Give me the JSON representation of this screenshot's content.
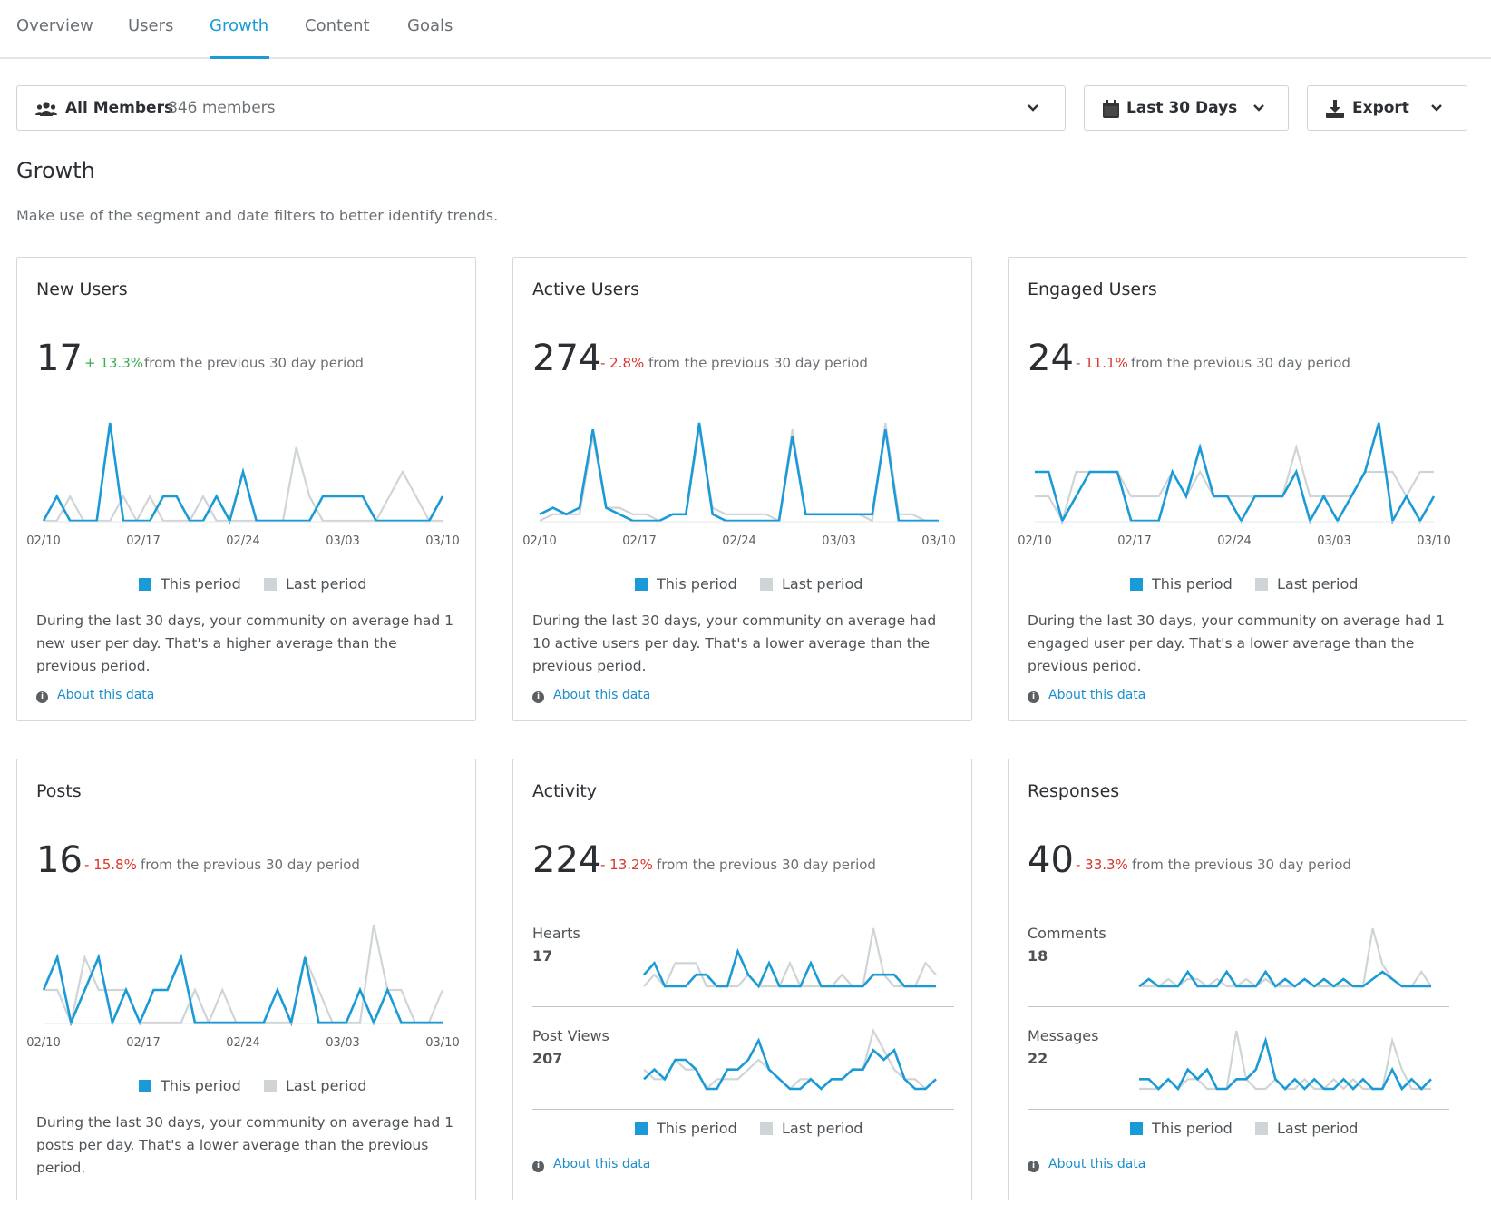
{
  "tabs": [
    "Overview",
    "Users",
    "Growth",
    "Content",
    "Goals"
  ],
  "active_tab": "Growth",
  "filters": {
    "segment": {
      "label": "All Members",
      "count": "846 members",
      "icon": "users-icon"
    },
    "date": {
      "label": "Last 30 Days",
      "icon": "calendar-icon"
    },
    "export": {
      "label": "Export",
      "icon": "download-icon"
    }
  },
  "page": {
    "title": "Growth",
    "subtitle": "Make use of the segment and date filters to better identify trends."
  },
  "colors": {
    "this_period": "#1a9ad6",
    "last_period": "#cfd4d6",
    "up": "#3aad4f",
    "down": "#d9342b",
    "link": "#1a8ecb"
  },
  "legend": {
    "this_period": "This period",
    "last_period": "Last period"
  },
  "about_label": "About this data",
  "from_text": "from the previous 30 day period",
  "cards": {
    "new_users": {
      "title": "New Users",
      "value": "17",
      "delta": "+ 13.3%",
      "direction": "up",
      "description": "During the last 30 days, your community on average had 1 new user per day. That's a higher average than the previous period."
    },
    "active_users": {
      "title": "Active Users",
      "value": "274",
      "delta": "- 2.8%",
      "direction": "down",
      "description": "During the last 30 days, your community on average had 10 active users per day. That's a lower average than the previous period."
    },
    "engaged_users": {
      "title": "Engaged Users",
      "value": "24",
      "delta": "- 11.1%",
      "direction": "down",
      "description": "During the last 30 days, your community on average had 1 engaged user per day. That's a lower average than the previous period."
    },
    "posts": {
      "title": "Posts",
      "value": "16",
      "delta": "- 15.8%",
      "direction": "down",
      "description": "During the last 30 days, your community on average had 1 posts per day. That's a lower average than the previous period."
    },
    "activity": {
      "title": "Activity",
      "value": "224",
      "delta": "- 13.2%",
      "direction": "down",
      "sub": [
        {
          "label": "Hearts",
          "value": "17"
        },
        {
          "label": "Post Views",
          "value": "207"
        }
      ]
    },
    "responses": {
      "title": "Responses",
      "value": "40",
      "delta": "- 33.3%",
      "direction": "down",
      "sub": [
        {
          "label": "Comments",
          "value": "18"
        },
        {
          "label": "Messages",
          "value": "22"
        }
      ]
    }
  },
  "chart_data": [
    {
      "id": "new_users",
      "type": "line",
      "x_ticks": [
        "02/10",
        "02/17",
        "02/24",
        "03/03",
        "03/10"
      ],
      "series": [
        {
          "name": "This period",
          "values": [
            0,
            1,
            0,
            0,
            0,
            4,
            0,
            0,
            0,
            1,
            1,
            0,
            0,
            1,
            0,
            2,
            0,
            0,
            0,
            0,
            0,
            1,
            1,
            1,
            1,
            0,
            0,
            0,
            0,
            0,
            1
          ]
        },
        {
          "name": "Last period",
          "values": [
            0,
            0,
            1,
            0,
            0,
            0,
            1,
            0,
            1,
            0,
            0,
            0,
            1,
            0,
            0,
            0,
            0,
            0,
            0,
            3,
            1,
            0,
            0,
            0,
            0,
            0,
            1,
            2,
            1,
            0,
            0
          ]
        }
      ]
    },
    {
      "id": "active_users",
      "type": "line",
      "x_ticks": [
        "02/10",
        "02/17",
        "02/24",
        "03/03",
        "03/10"
      ],
      "series": [
        {
          "name": "This period",
          "values": [
            1,
            2,
            1,
            2,
            14,
            2,
            1,
            0,
            0,
            0,
            1,
            1,
            15,
            1,
            0,
            0,
            0,
            0,
            0,
            13,
            1,
            1,
            1,
            1,
            1,
            1,
            14,
            0,
            0,
            0,
            0
          ]
        },
        {
          "name": "Last period",
          "values": [
            0,
            1,
            1,
            1,
            13,
            2,
            2,
            1,
            1,
            0,
            1,
            1,
            14,
            2,
            1,
            1,
            1,
            1,
            0,
            14,
            1,
            1,
            1,
            1,
            1,
            0,
            15,
            1,
            1,
            0,
            0
          ]
        }
      ]
    },
    {
      "id": "engaged_users",
      "type": "line",
      "x_ticks": [
        "02/10",
        "02/17",
        "02/24",
        "03/03",
        "03/10"
      ],
      "series": [
        {
          "name": "This period",
          "values": [
            2,
            2,
            0,
            1,
            2,
            2,
            2,
            0,
            0,
            0,
            2,
            1,
            3,
            1,
            1,
            0,
            1,
            1,
            1,
            2,
            0,
            1,
            0,
            1,
            2,
            4,
            0,
            1,
            0,
            1
          ]
        },
        {
          "name": "Last period",
          "values": [
            1,
            1,
            0,
            2,
            2,
            2,
            2,
            1,
            1,
            1,
            2,
            1,
            2,
            1,
            1,
            1,
            1,
            1,
            1,
            3,
            1,
            1,
            1,
            1,
            2,
            2,
            2,
            1,
            2,
            2
          ]
        }
      ]
    },
    {
      "id": "posts",
      "type": "line",
      "x_ticks": [
        "02/10",
        "02/17",
        "02/24",
        "03/03",
        "03/10"
      ],
      "series": [
        {
          "name": "This period",
          "values": [
            1,
            2,
            0,
            1,
            2,
            0,
            1,
            0,
            1,
            1,
            2,
            0,
            0,
            0,
            0,
            0,
            0,
            1,
            0,
            2,
            0,
            0,
            0,
            1,
            0,
            1,
            0,
            0,
            0,
            0
          ]
        },
        {
          "name": "Last period",
          "values": [
            1,
            1,
            0,
            2,
            1,
            1,
            1,
            0,
            0,
            0,
            0,
            1,
            0,
            1,
            0,
            0,
            0,
            0,
            0,
            2,
            1,
            0,
            0,
            0,
            3,
            1,
            1,
            0,
            0,
            1
          ]
        }
      ]
    },
    {
      "id": "hearts",
      "type": "line",
      "series": [
        {
          "name": "This period",
          "values": [
            1,
            2,
            0,
            0,
            0,
            1,
            1,
            0,
            0,
            3,
            1,
            0,
            2,
            0,
            0,
            0,
            2,
            0,
            0,
            0,
            0,
            0,
            1,
            1,
            1,
            0,
            0,
            0,
            0
          ]
        },
        {
          "name": "Last period",
          "values": [
            0,
            1,
            0,
            2,
            2,
            2,
            0,
            0,
            0,
            0,
            1,
            0,
            0,
            0,
            2,
            0,
            0,
            0,
            0,
            1,
            0,
            0,
            5,
            1,
            0,
            0,
            0,
            2,
            1
          ]
        }
      ]
    },
    {
      "id": "post_views",
      "type": "line",
      "series": [
        {
          "name": "This period",
          "values": [
            1,
            2,
            1,
            3,
            3,
            2,
            0,
            0,
            2,
            2,
            3,
            5,
            2,
            1,
            0,
            0,
            1,
            0,
            1,
            1,
            2,
            2,
            4,
            3,
            4,
            1,
            0,
            0,
            1
          ]
        },
        {
          "name": "Last period",
          "values": [
            2,
            1,
            1,
            3,
            2,
            2,
            0,
            1,
            1,
            1,
            2,
            3,
            2,
            1,
            0,
            1,
            1,
            0,
            1,
            1,
            2,
            2,
            6,
            4,
            2,
            1,
            1,
            0,
            1
          ]
        }
      ]
    },
    {
      "id": "comments",
      "type": "line",
      "series": [
        {
          "name": "This period",
          "values": [
            0,
            1,
            0,
            0,
            0,
            2,
            0,
            0,
            0,
            2,
            0,
            0,
            0,
            2,
            0,
            1,
            0,
            1,
            0,
            1,
            0,
            1,
            0,
            0,
            1,
            2,
            1,
            0,
            0,
            0,
            0
          ]
        },
        {
          "name": "Last period",
          "values": [
            0,
            0,
            0,
            1,
            0,
            1,
            1,
            0,
            1,
            0,
            0,
            1,
            0,
            1,
            0,
            0,
            0,
            1,
            0,
            0,
            0,
            0,
            0,
            0,
            8,
            3,
            1,
            0,
            0,
            2,
            0
          ]
        }
      ]
    },
    {
      "id": "messages",
      "type": "line",
      "series": [
        {
          "name": "This period",
          "values": [
            1,
            1,
            0,
            1,
            0,
            2,
            1,
            2,
            0,
            0,
            1,
            1,
            2,
            5,
            1,
            0,
            1,
            0,
            1,
            0,
            0,
            1,
            0,
            1,
            0,
            0,
            2,
            0,
            1,
            0,
            1
          ]
        },
        {
          "name": "Last period",
          "values": [
            0,
            0,
            0,
            1,
            0,
            1,
            1,
            0,
            0,
            0,
            6,
            1,
            0,
            0,
            1,
            0,
            0,
            1,
            0,
            0,
            1,
            0,
            1,
            0,
            0,
            0,
            5,
            2,
            0,
            0,
            0
          ]
        }
      ]
    }
  ]
}
